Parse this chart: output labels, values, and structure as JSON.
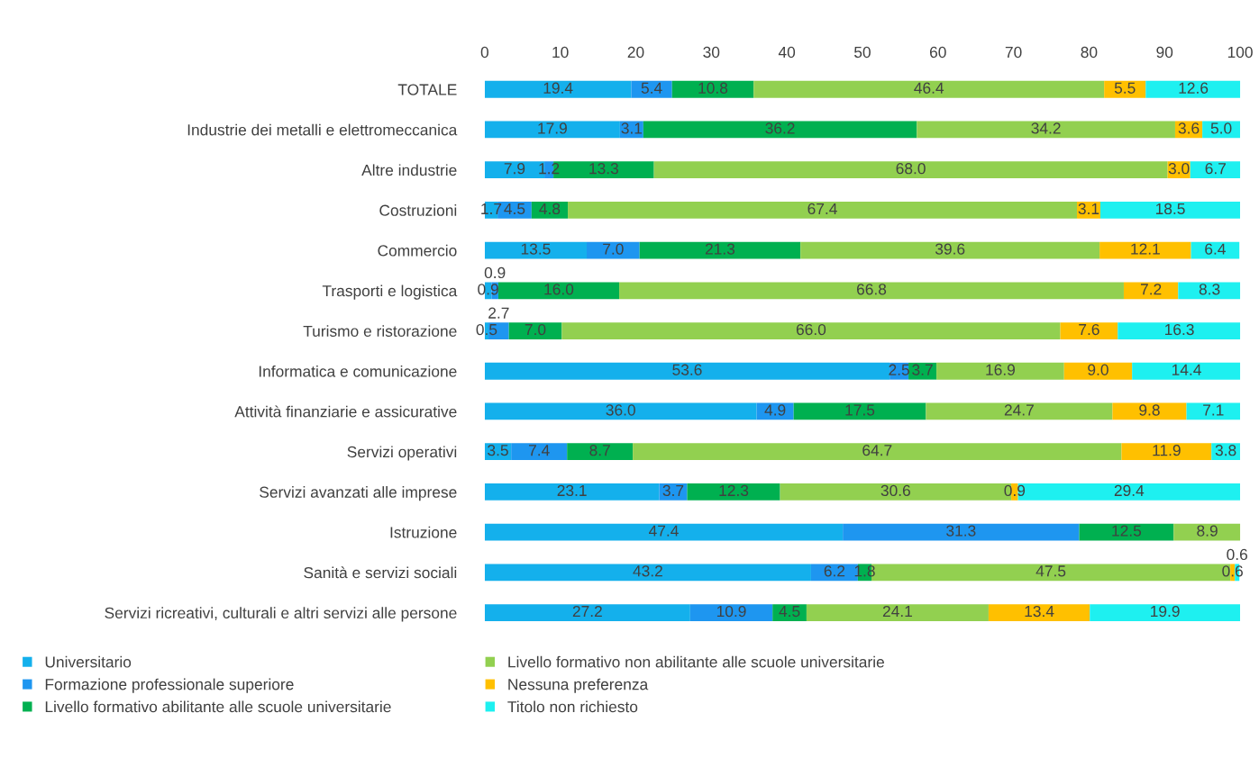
{
  "chart_data": {
    "type": "bar",
    "orientation": "horizontal",
    "stacked": true,
    "grid": false,
    "legend": "bottom",
    "categories": [
      "TOTALE",
      "Industrie dei metalli e elettromeccanica",
      "Altre industrie",
      "Costruzioni",
      "Commercio",
      "Trasporti e logistica",
      "Turismo e ristorazione",
      "Informatica e comunicazione",
      "Attività finanziarie e assicurative",
      "Servizi operativi",
      "Servizi avanzati alle imprese",
      "Istruzione",
      "Sanità e servizi sociali",
      "Servizi ricreativi, culturali e altri servizi alle persone"
    ],
    "xlim": [
      0,
      100
    ],
    "xticks": [
      0,
      10,
      20,
      30,
      40,
      50,
      60,
      70,
      80,
      90,
      100
    ],
    "series": [
      {
        "name": "Universitario",
        "color": "#14b0ec",
        "values": [
          19.4,
          17.9,
          7.9,
          1.7,
          13.5,
          0.9,
          0.5,
          53.6,
          36.0,
          3.5,
          23.1,
          47.4,
          43.2,
          27.2
        ],
        "value_labels": [
          "19.4",
          "17.9",
          "7.9",
          "1.7",
          "13.5",
          "0.9",
          "0.5",
          "53.6",
          "36.0",
          "3.5",
          "23.1",
          "47.4",
          "43.2",
          "27.2"
        ]
      },
      {
        "name": "Formazione professionale superiore",
        "color": "#1e96f0",
        "values": [
          5.4,
          3.1,
          1.2,
          4.5,
          7.0,
          0.9,
          2.7,
          2.5,
          4.9,
          7.4,
          3.7,
          31.3,
          6.2,
          10.9
        ],
        "value_labels": [
          "5.4",
          "3.1",
          "1.2",
          "4.5",
          "7.0",
          "0.9",
          "2.7",
          "2.5",
          "4.9",
          "7.4",
          "3.7",
          "31.3",
          "6.2",
          "10.9"
        ]
      },
      {
        "name": "Livello formativo abilitante alle scuole universitarie",
        "color": "#00b050",
        "values": [
          10.8,
          36.2,
          13.3,
          4.8,
          21.3,
          16.0,
          7.0,
          3.7,
          17.5,
          8.7,
          12.3,
          12.5,
          1.8,
          4.5
        ],
        "value_labels": [
          "10.8",
          "36.2",
          "13.3",
          "4.8",
          "21.3",
          "16.0",
          "7.0",
          "3.7",
          "17.5",
          "8.7",
          "12.3",
          "12.5",
          "1.8",
          "4.5"
        ]
      },
      {
        "name": "Livello formativo non abilitante alle scuole universitarie",
        "color": "#92d050",
        "values": [
          46.4,
          34.2,
          68.0,
          67.4,
          39.6,
          66.8,
          66.0,
          16.9,
          24.7,
          64.7,
          30.6,
          8.9,
          47.5,
          24.1
        ],
        "value_labels": [
          "46.4",
          "34.2",
          "68.0",
          "67.4",
          "39.6",
          "66.8",
          "66.0",
          "16.9",
          "24.7",
          "64.7",
          "30.6",
          "8.9",
          "47.5",
          "24.1"
        ]
      },
      {
        "name": "Nessuna preferenza",
        "color": "#ffc000",
        "values": [
          5.5,
          3.6,
          3.0,
          3.1,
          12.1,
          7.2,
          7.6,
          9.0,
          9.8,
          11.9,
          0.9,
          null,
          0.6,
          13.4
        ],
        "value_labels": [
          "5.5",
          "3.6",
          "3.0",
          "3.1",
          "12.1",
          "7.2",
          "7.6",
          "9.0",
          "9.8",
          "11.9",
          "0.9",
          null,
          "0.6",
          "13.4"
        ]
      },
      {
        "name": "Titolo non richiesto",
        "color": "#1ef0f0",
        "values": [
          12.6,
          5.0,
          6.7,
          18.5,
          6.4,
          8.3,
          16.3,
          14.4,
          7.1,
          3.8,
          29.4,
          null,
          0.6,
          19.9
        ],
        "value_labels": [
          "12.6",
          "5.0",
          "6.7",
          "18.5",
          "6.4",
          "8.3",
          "16.3",
          "14.4",
          "7.1",
          "3.8",
          "29.4",
          null,
          "0.6",
          "19.9"
        ]
      }
    ]
  }
}
